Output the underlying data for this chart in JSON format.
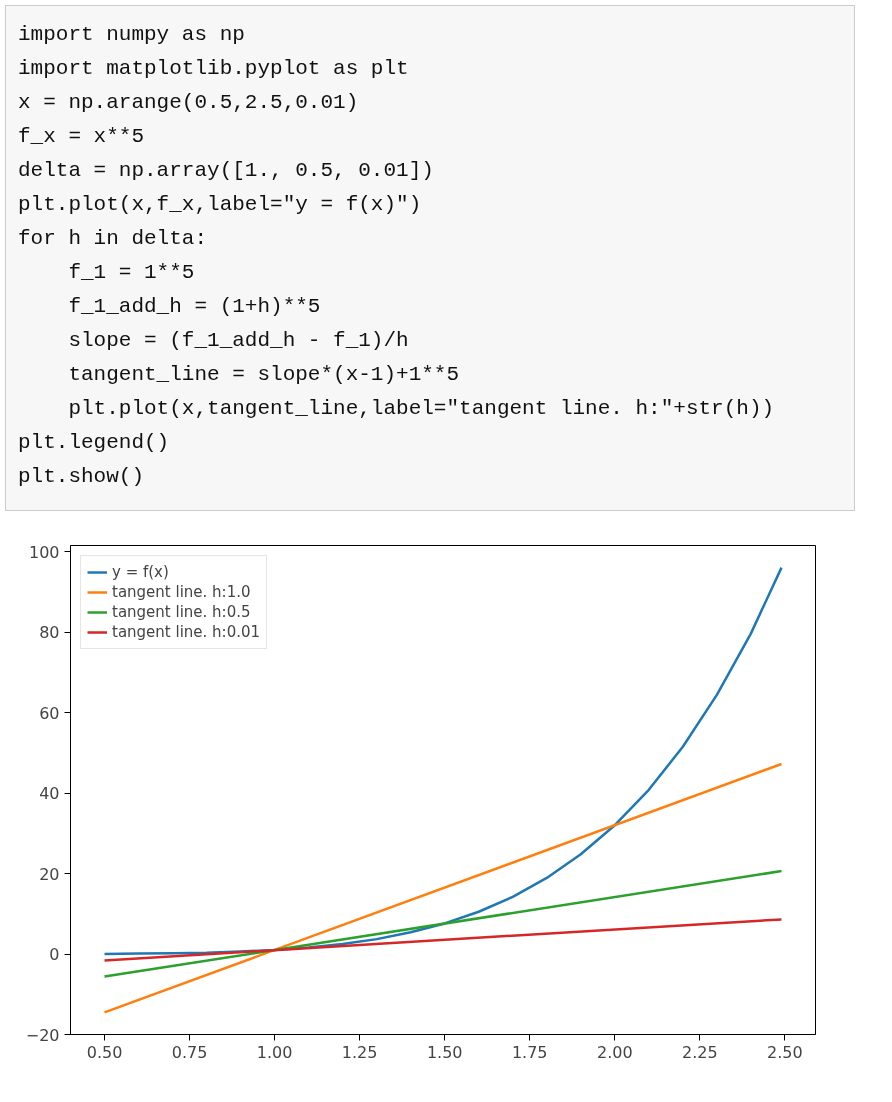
{
  "chart_data": {
    "type": "line",
    "annotations": [
      "import numpy as np",
      "import matplotlib.pyplot as plt",
      "x = np.arange(0.5,2.5,0.01)",
      "f_x = x**5",
      "delta = np.array([1., 0.5, 0.01])",
      "plt.plot(x,f_x,label=\"y = f(x)\")",
      "for h in delta:",
      "    f_1 = 1**5",
      "    f_1_add_h = (1+h)**5",
      "    slope = (f_1_add_h - f_1)/h",
      "    tangent_line = slope*(x-1)+1**5",
      "    plt.plot(x,tangent_line,label=\"tangent line. h:\"+str(h))",
      "plt.legend()",
      "plt.show()"
    ],
    "series": [
      {
        "name": "y = f(x)",
        "color": "#1f77b4",
        "x": [
          0.5,
          0.6,
          0.7,
          0.8,
          0.9,
          1.0,
          1.1,
          1.2,
          1.3,
          1.4,
          1.5,
          1.6,
          1.7,
          1.8,
          1.9,
          2.0,
          2.1,
          2.2,
          2.3,
          2.4,
          2.49
        ],
        "values": [
          0.0,
          0.1,
          0.2,
          0.3,
          0.6,
          1.0,
          1.6,
          2.5,
          3.7,
          5.4,
          7.6,
          10.5,
          14.2,
          18.9,
          24.8,
          32.0,
          40.8,
          51.5,
          64.4,
          79.6,
          96.0
        ]
      },
      {
        "name": "tangent line. h:1.0",
        "color": "#ff7f0e",
        "x": [
          0.5,
          2.49
        ],
        "values": [
          -14.5,
          47.2
        ]
      },
      {
        "name": "tangent line. h:0.5",
        "color": "#2ca02c",
        "x": [
          0.5,
          2.49
        ],
        "values": [
          -5.6,
          20.6
        ]
      },
      {
        "name": "tangent line. h:0.01",
        "color": "#d62728",
        "x": [
          0.5,
          2.49
        ],
        "values": [
          -1.6,
          8.6
        ]
      }
    ],
    "xlim": [
      0.4,
      2.59
    ],
    "ylim": [
      -20.0,
      101.5
    ],
    "xticks": [
      {
        "value": 0.5,
        "label": "0.50"
      },
      {
        "value": 0.75,
        "label": "0.75"
      },
      {
        "value": 1.0,
        "label": "1.00"
      },
      {
        "value": 1.25,
        "label": "1.25"
      },
      {
        "value": 1.5,
        "label": "1.50"
      },
      {
        "value": 1.75,
        "label": "1.75"
      },
      {
        "value": 2.0,
        "label": "2.00"
      },
      {
        "value": 2.25,
        "label": "2.25"
      },
      {
        "value": 2.5,
        "label": "2.50"
      }
    ],
    "yticks": [
      {
        "value": -20,
        "label": "−20"
      },
      0,
      20,
      40,
      60,
      80,
      100
    ],
    "legend": "top left",
    "grid": false,
    "line_style": "solid"
  }
}
